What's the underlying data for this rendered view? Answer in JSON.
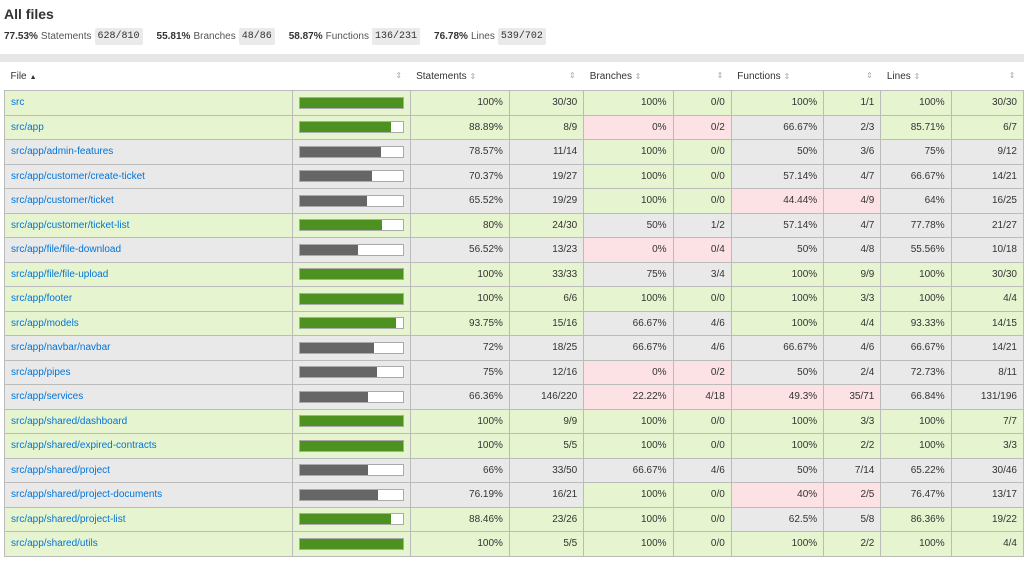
{
  "title": "All files",
  "summary": [
    {
      "pct": "77.53%",
      "label": "Statements",
      "frac": "628/810"
    },
    {
      "pct": "55.81%",
      "label": "Branches",
      "frac": "48/86"
    },
    {
      "pct": "58.87%",
      "label": "Functions",
      "frac": "136/231"
    },
    {
      "pct": "76.78%",
      "label": "Lines",
      "frac": "539/702"
    }
  ],
  "columns": {
    "file": "File",
    "statements": "Statements",
    "branches": "Branches",
    "functions": "Functions",
    "lines": "Lines"
  },
  "colors": {
    "high": "#e6f5d0",
    "medium": "#e9e9e9",
    "low": "#fce1e5",
    "bar_high": "#4d9221",
    "bar_medium": "#666666",
    "link": "#0074d9"
  },
  "rows": [
    {
      "file": "src",
      "coverage": 1.0,
      "bar": "high",
      "row": "high",
      "s": [
        "100%",
        "30/30",
        "high"
      ],
      "b": [
        "100%",
        "0/0",
        "high"
      ],
      "f": [
        "100%",
        "1/1",
        "high"
      ],
      "l": [
        "100%",
        "30/30",
        "high"
      ]
    },
    {
      "file": "src/app",
      "coverage": 0.8889,
      "bar": "high",
      "row": "high",
      "s": [
        "88.89%",
        "8/9",
        "high"
      ],
      "b": [
        "0%",
        "0/2",
        "low"
      ],
      "f": [
        "66.67%",
        "2/3",
        "medium"
      ],
      "l": [
        "85.71%",
        "6/7",
        "high"
      ]
    },
    {
      "file": "src/app/admin-features",
      "coverage": 0.7857,
      "bar": "medium",
      "row": "medium",
      "s": [
        "78.57%",
        "11/14",
        "medium"
      ],
      "b": [
        "100%",
        "0/0",
        "high"
      ],
      "f": [
        "50%",
        "3/6",
        "medium"
      ],
      "l": [
        "75%",
        "9/12",
        "medium"
      ]
    },
    {
      "file": "src/app/customer/create-ticket",
      "coverage": 0.7037,
      "bar": "medium",
      "row": "medium",
      "s": [
        "70.37%",
        "19/27",
        "medium"
      ],
      "b": [
        "100%",
        "0/0",
        "high"
      ],
      "f": [
        "57.14%",
        "4/7",
        "medium"
      ],
      "l": [
        "66.67%",
        "14/21",
        "medium"
      ]
    },
    {
      "file": "src/app/customer/ticket",
      "coverage": 0.6552,
      "bar": "medium",
      "row": "medium",
      "s": [
        "65.52%",
        "19/29",
        "medium"
      ],
      "b": [
        "100%",
        "0/0",
        "high"
      ],
      "f": [
        "44.44%",
        "4/9",
        "low"
      ],
      "l": [
        "64%",
        "16/25",
        "medium"
      ]
    },
    {
      "file": "src/app/customer/ticket-list",
      "coverage": 0.8,
      "bar": "high",
      "row": "high",
      "s": [
        "80%",
        "24/30",
        "high"
      ],
      "b": [
        "50%",
        "1/2",
        "medium"
      ],
      "f": [
        "57.14%",
        "4/7",
        "medium"
      ],
      "l": [
        "77.78%",
        "21/27",
        "medium"
      ]
    },
    {
      "file": "src/app/file/file-download",
      "coverage": 0.5652,
      "bar": "medium",
      "row": "medium",
      "s": [
        "56.52%",
        "13/23",
        "medium"
      ],
      "b": [
        "0%",
        "0/4",
        "low"
      ],
      "f": [
        "50%",
        "4/8",
        "medium"
      ],
      "l": [
        "55.56%",
        "10/18",
        "medium"
      ]
    },
    {
      "file": "src/app/file/file-upload",
      "coverage": 1.0,
      "bar": "high",
      "row": "high",
      "s": [
        "100%",
        "33/33",
        "high"
      ],
      "b": [
        "75%",
        "3/4",
        "medium"
      ],
      "f": [
        "100%",
        "9/9",
        "high"
      ],
      "l": [
        "100%",
        "30/30",
        "high"
      ]
    },
    {
      "file": "src/app/footer",
      "coverage": 1.0,
      "bar": "high",
      "row": "high",
      "s": [
        "100%",
        "6/6",
        "high"
      ],
      "b": [
        "100%",
        "0/0",
        "high"
      ],
      "f": [
        "100%",
        "3/3",
        "high"
      ],
      "l": [
        "100%",
        "4/4",
        "high"
      ]
    },
    {
      "file": "src/app/models",
      "coverage": 0.9375,
      "bar": "high",
      "row": "high",
      "s": [
        "93.75%",
        "15/16",
        "high"
      ],
      "b": [
        "66.67%",
        "4/6",
        "medium"
      ],
      "f": [
        "100%",
        "4/4",
        "high"
      ],
      "l": [
        "93.33%",
        "14/15",
        "high"
      ]
    },
    {
      "file": "src/app/navbar/navbar",
      "coverage": 0.72,
      "bar": "medium",
      "row": "medium",
      "s": [
        "72%",
        "18/25",
        "medium"
      ],
      "b": [
        "66.67%",
        "4/6",
        "medium"
      ],
      "f": [
        "66.67%",
        "4/6",
        "medium"
      ],
      "l": [
        "66.67%",
        "14/21",
        "medium"
      ]
    },
    {
      "file": "src/app/pipes",
      "coverage": 0.75,
      "bar": "medium",
      "row": "medium",
      "s": [
        "75%",
        "12/16",
        "medium"
      ],
      "b": [
        "0%",
        "0/2",
        "low"
      ],
      "f": [
        "50%",
        "2/4",
        "medium"
      ],
      "l": [
        "72.73%",
        "8/11",
        "medium"
      ]
    },
    {
      "file": "src/app/services",
      "coverage": 0.6636,
      "bar": "medium",
      "row": "medium",
      "s": [
        "66.36%",
        "146/220",
        "medium"
      ],
      "b": [
        "22.22%",
        "4/18",
        "low"
      ],
      "f": [
        "49.3%",
        "35/71",
        "low"
      ],
      "l": [
        "66.84%",
        "131/196",
        "medium"
      ]
    },
    {
      "file": "src/app/shared/dashboard",
      "coverage": 1.0,
      "bar": "high",
      "row": "high",
      "s": [
        "100%",
        "9/9",
        "high"
      ],
      "b": [
        "100%",
        "0/0",
        "high"
      ],
      "f": [
        "100%",
        "3/3",
        "high"
      ],
      "l": [
        "100%",
        "7/7",
        "high"
      ]
    },
    {
      "file": "src/app/shared/expired-contracts",
      "coverage": 1.0,
      "bar": "high",
      "row": "high",
      "s": [
        "100%",
        "5/5",
        "high"
      ],
      "b": [
        "100%",
        "0/0",
        "high"
      ],
      "f": [
        "100%",
        "2/2",
        "high"
      ],
      "l": [
        "100%",
        "3/3",
        "high"
      ]
    },
    {
      "file": "src/app/shared/project",
      "coverage": 0.66,
      "bar": "medium",
      "row": "medium",
      "s": [
        "66%",
        "33/50",
        "medium"
      ],
      "b": [
        "66.67%",
        "4/6",
        "medium"
      ],
      "f": [
        "50%",
        "7/14",
        "medium"
      ],
      "l": [
        "65.22%",
        "30/46",
        "medium"
      ]
    },
    {
      "file": "src/app/shared/project-documents",
      "coverage": 0.7619,
      "bar": "medium",
      "row": "medium",
      "s": [
        "76.19%",
        "16/21",
        "medium"
      ],
      "b": [
        "100%",
        "0/0",
        "high"
      ],
      "f": [
        "40%",
        "2/5",
        "low"
      ],
      "l": [
        "76.47%",
        "13/17",
        "medium"
      ]
    },
    {
      "file": "src/app/shared/project-list",
      "coverage": 0.8846,
      "bar": "high",
      "row": "high",
      "s": [
        "88.46%",
        "23/26",
        "high"
      ],
      "b": [
        "100%",
        "0/0",
        "high"
      ],
      "f": [
        "62.5%",
        "5/8",
        "medium"
      ],
      "l": [
        "86.36%",
        "19/22",
        "high"
      ]
    },
    {
      "file": "src/app/shared/utils",
      "coverage": 1.0,
      "bar": "high",
      "row": "high",
      "s": [
        "100%",
        "5/5",
        "high"
      ],
      "b": [
        "100%",
        "0/0",
        "high"
      ],
      "f": [
        "100%",
        "2/2",
        "high"
      ],
      "l": [
        "100%",
        "4/4",
        "high"
      ]
    }
  ]
}
